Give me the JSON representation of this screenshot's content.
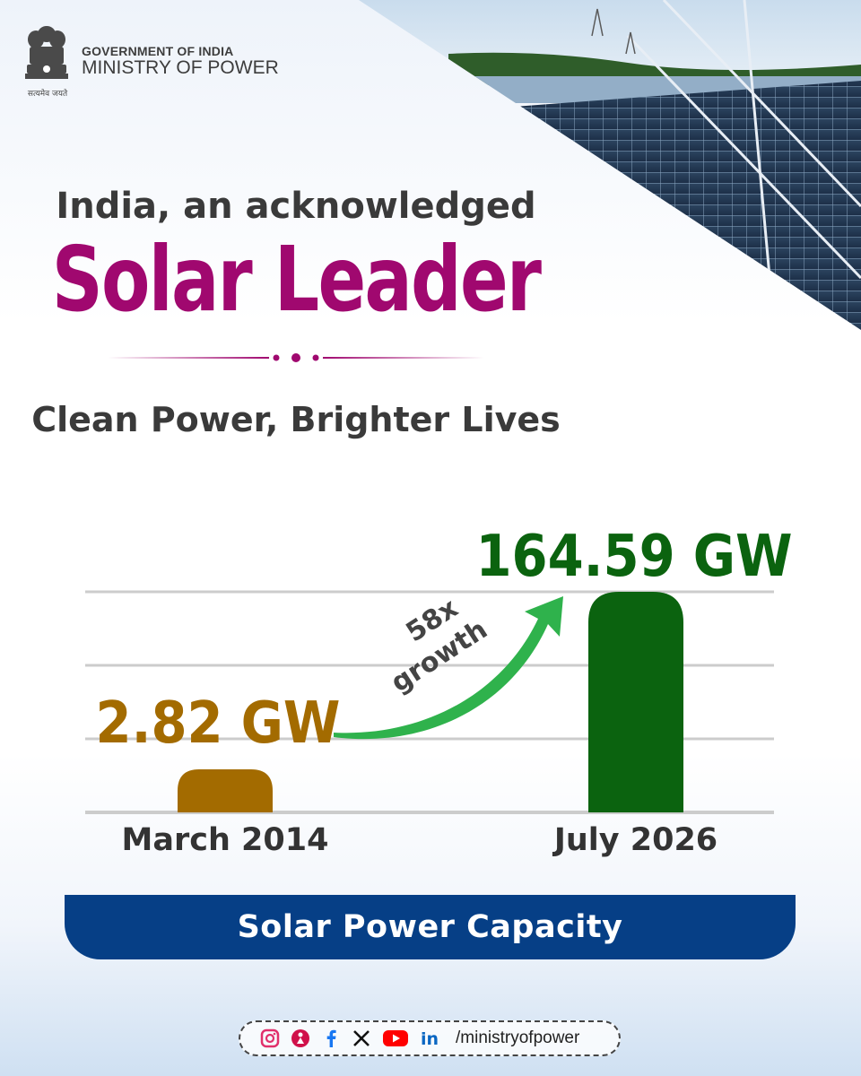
{
  "header": {
    "government": "GOVERNMENT OF INDIA",
    "ministry": "MINISTRY OF POWER",
    "motto": "सत्यमेव जयते"
  },
  "headline": "India, an acknowledged",
  "hero": "Solar Leader",
  "subline": "Clean Power, Brighter Lives",
  "chart_data": {
    "type": "bar",
    "categories": [
      "March 2014",
      "July 2026"
    ],
    "values": [
      2.82,
      164.59
    ],
    "unit": "GW",
    "value_labels": [
      "2.82 GW",
      "164.59 GW"
    ],
    "annotation": {
      "line1": "58x",
      "line2": "growth"
    },
    "title": "Solar Power Capacity",
    "colors": [
      "#a36b00",
      "#0b630f"
    ],
    "grid": true,
    "legend": "none"
  },
  "caption": "Solar Power Capacity",
  "social": {
    "icons": [
      "instagram-icon",
      "koo-icon",
      "facebook-icon",
      "x-icon",
      "youtube-icon",
      "linkedin-icon"
    ],
    "handle": "/ministryofpower"
  },
  "colors": {
    "brand_magenta": "#a0086f",
    "navy": "#063f86",
    "arrow_green": "#2fb24c"
  }
}
